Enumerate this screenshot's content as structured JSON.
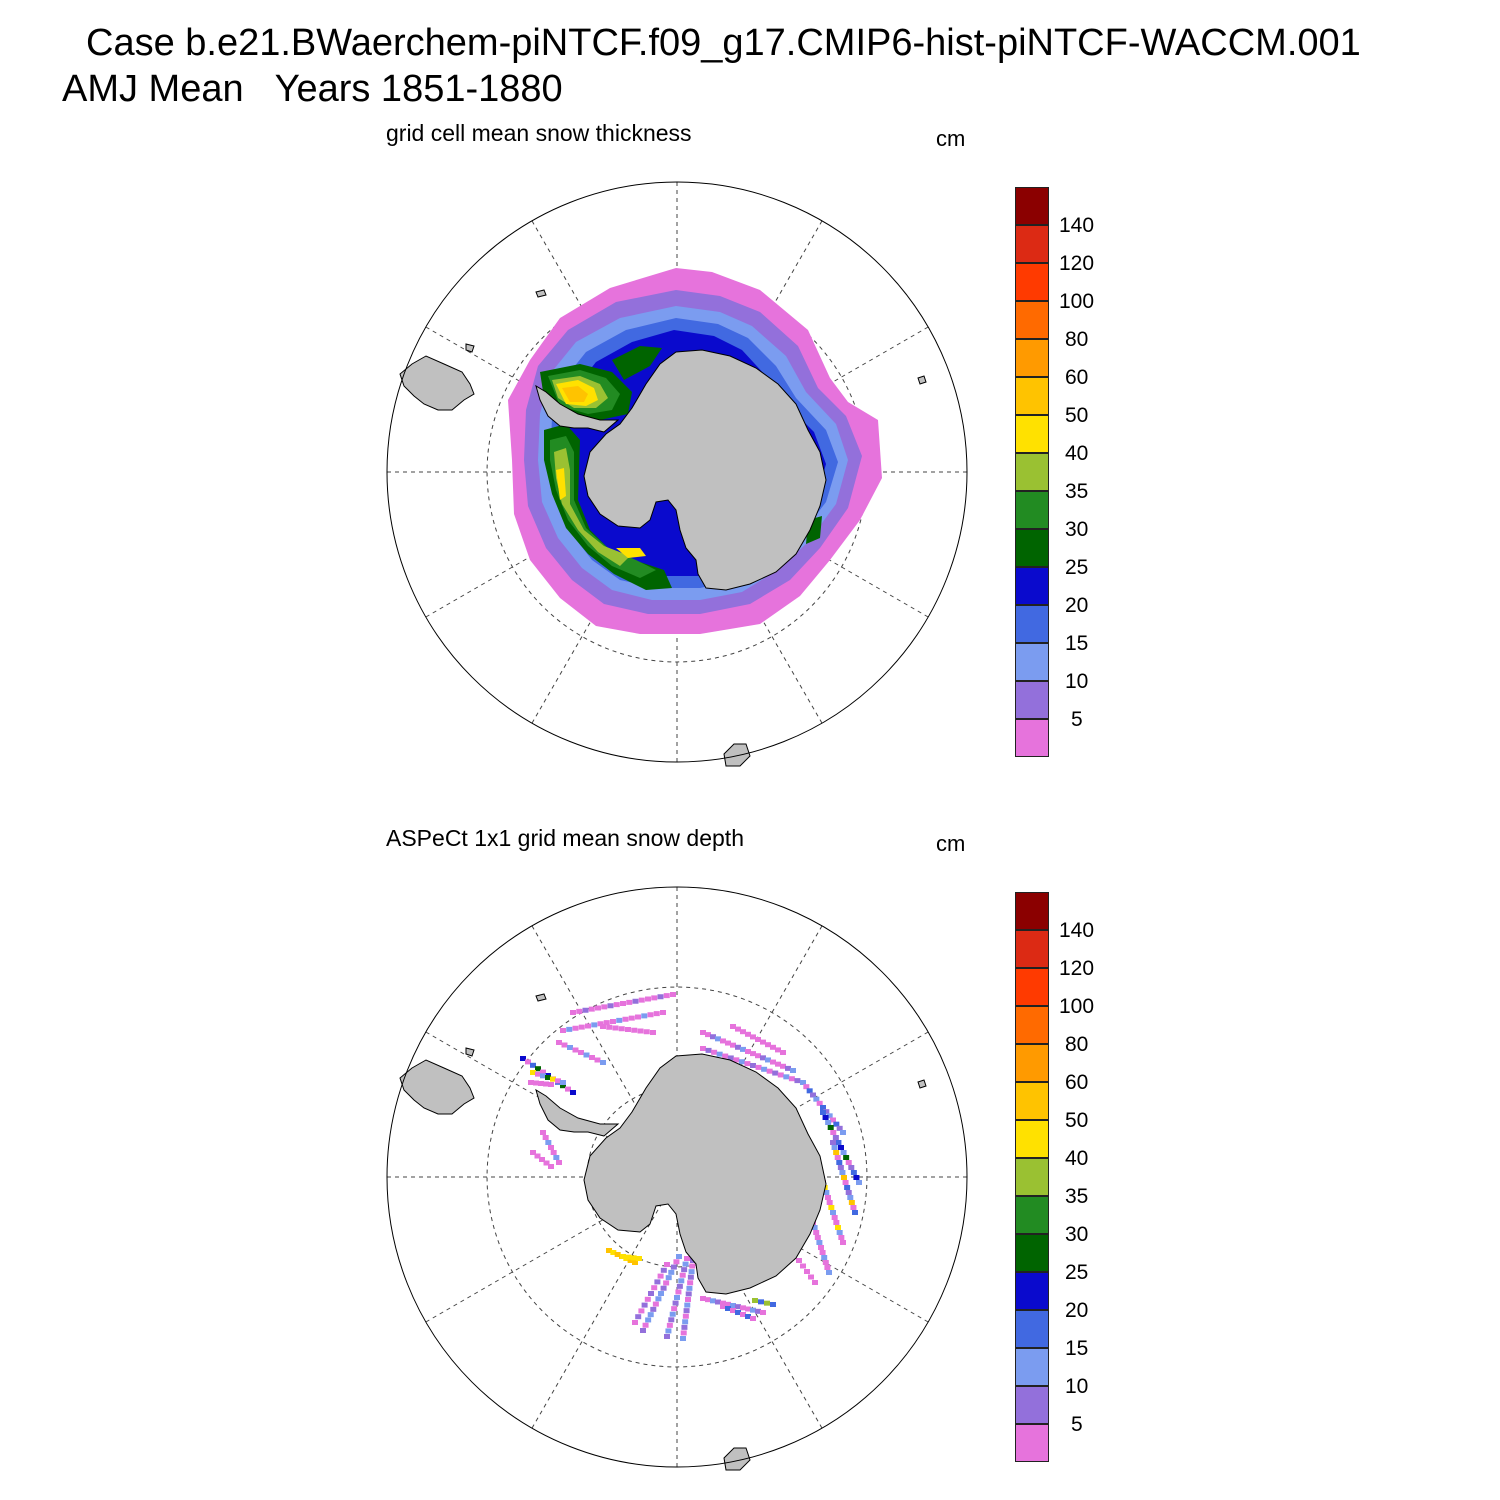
{
  "title_line1": "Case b.e21.BWaerchem-piNTCF.f09_g17.CMIP6-hist-piNTCF-WACCM.001",
  "title_line2": "AMJ Mean   Years 1851-1880",
  "colorbar": {
    "labels": [
      "5",
      "10",
      "15",
      "20",
      "25",
      "30",
      "35",
      "40",
      "50",
      "60",
      "80",
      "100",
      "120",
      "140"
    ],
    "colors": [
      "#e673dc",
      "#9370db",
      "#7b9cf0",
      "#4169e1",
      "#0a0acd",
      "#006400",
      "#228b22",
      "#9ac132",
      "#ffe100",
      "#ffc300",
      "#ff9a00",
      "#ff6a00",
      "#ff3a00",
      "#dc2a14",
      "#8b0000"
    ]
  },
  "land_color": "#c0c0c0",
  "panels": [
    {
      "title": "grid cell mean snow thickness",
      "units": "cm"
    },
    {
      "title": "ASPeCt 1x1 grid mean snow depth",
      "units": "cm"
    }
  ]
}
